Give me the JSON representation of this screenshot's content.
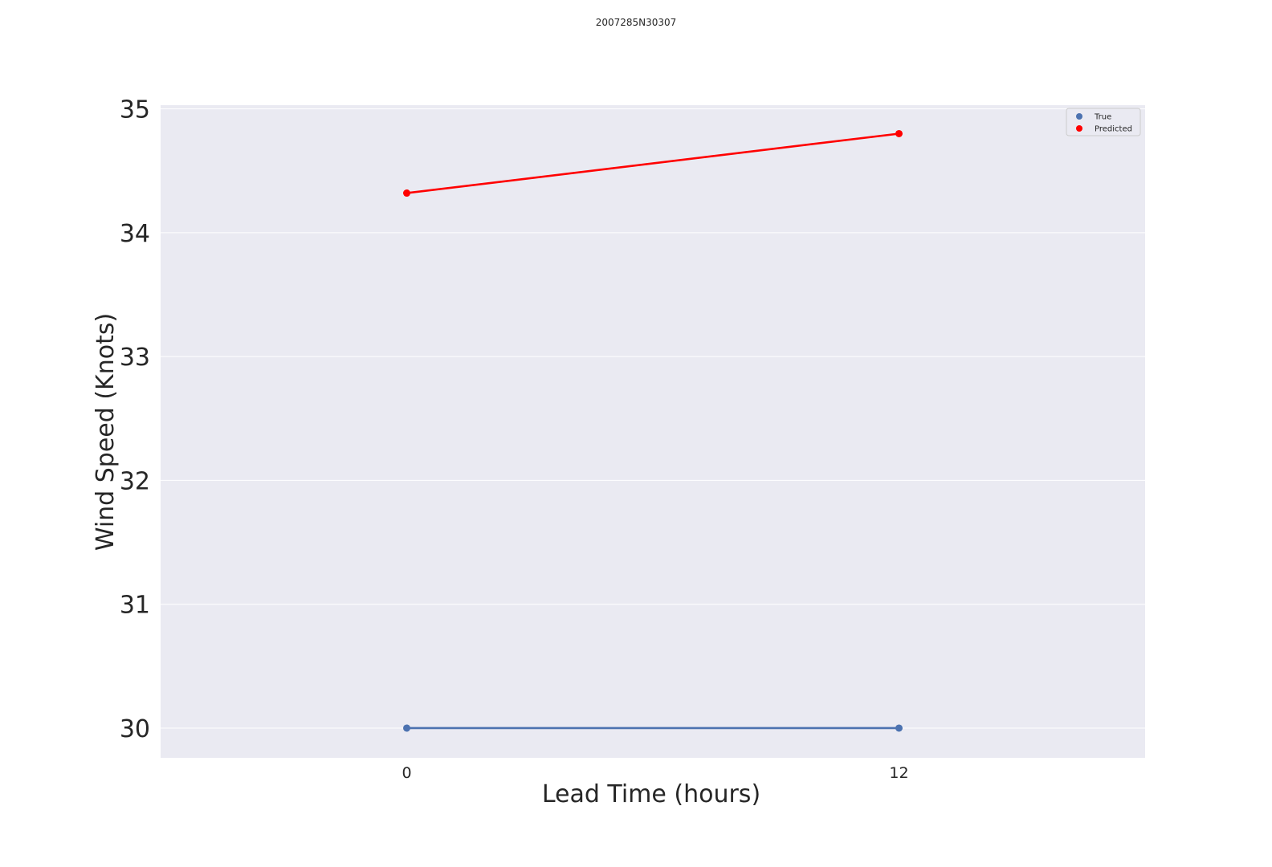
{
  "chart_data": {
    "type": "line",
    "title": "2007285N30307",
    "xlabel": "Lead Time (hours)",
    "ylabel": "Wind Speed (Knots)",
    "x": [
      0,
      12
    ],
    "x_tick_labels": [
      "0",
      "12"
    ],
    "xlim": [
      -6,
      18
    ],
    "ylim": [
      29.76,
      35.03
    ],
    "y_ticks": [
      30,
      31,
      32,
      33,
      34,
      35
    ],
    "y_tick_labels": [
      "30",
      "31",
      "32",
      "33",
      "34",
      "35"
    ],
    "grid": true,
    "legend_position": "upper right",
    "series": [
      {
        "name": "True",
        "values": [
          30.0,
          30.0
        ],
        "color": "#4c72b0"
      },
      {
        "name": "Predicted",
        "values": [
          34.32,
          34.8
        ],
        "color": "#ff0000"
      }
    ],
    "background_color": "#eaeaf2",
    "grid_color": "#ffffff"
  }
}
